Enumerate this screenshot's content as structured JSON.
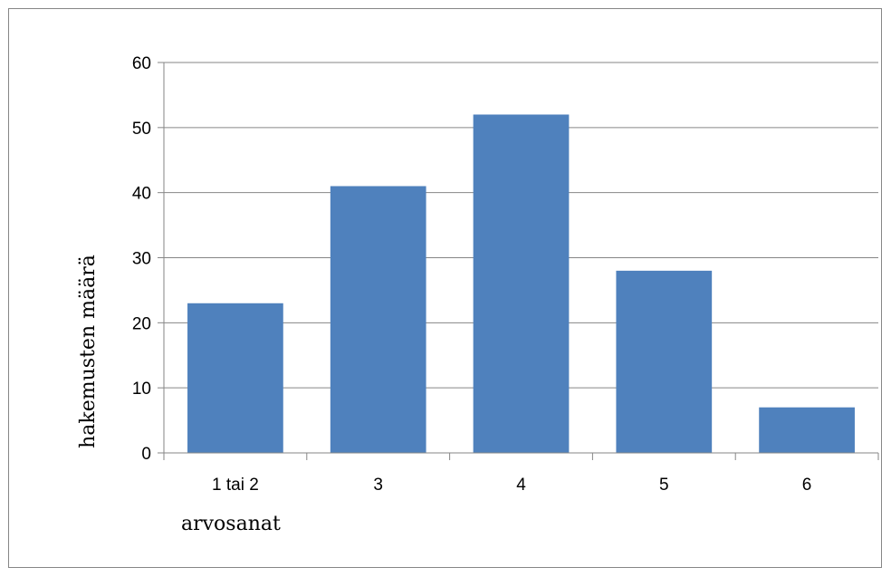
{
  "chart_data": {
    "type": "bar",
    "title": "",
    "xlabel": "arvosanat",
    "ylabel": "hakemusten määrä",
    "categories": [
      "1 tai 2",
      "3",
      "4",
      "5",
      "6"
    ],
    "values": [
      23,
      41,
      52,
      28,
      7
    ],
    "ylim": [
      0,
      60
    ],
    "yticks": [
      0,
      10,
      20,
      30,
      40,
      50,
      60
    ],
    "grid": true,
    "legend": "none",
    "bar_color": "#4F81BD",
    "gridline_color": "#868686"
  }
}
